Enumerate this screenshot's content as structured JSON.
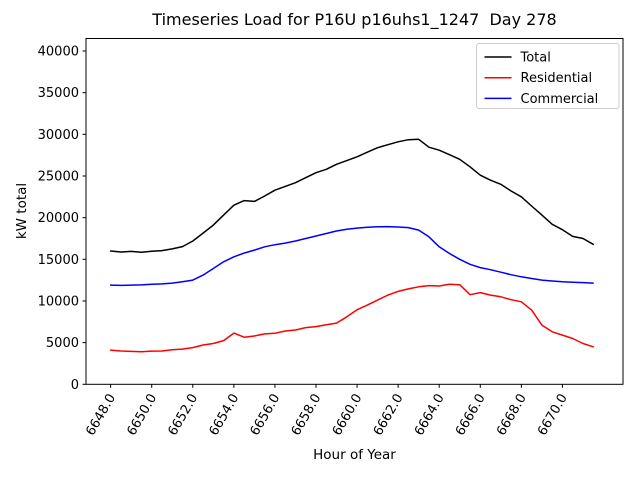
{
  "figure": {
    "background": "#ffffff",
    "text_color": "#000000"
  },
  "chart_data": {
    "type": "line",
    "title": "Timeseries Load for P16U p16uhs1_1247  Day 278",
    "xlabel": "Hour of Year",
    "ylabel": "kW total",
    "xlim": [
      6646.8,
      6672.95
    ],
    "ylim": [
      0,
      41500
    ],
    "grid": false,
    "x": [
      6648,
      6648.5,
      6649,
      6649.5,
      6650,
      6650.5,
      6651,
      6651.5,
      6652,
      6652.5,
      6653,
      6653.5,
      6654,
      6654.5,
      6655,
      6655.5,
      6656,
      6656.5,
      6657,
      6657.5,
      6658,
      6658.5,
      6659,
      6659.5,
      6660,
      6660.5,
      6661,
      6661.5,
      6662,
      6662.5,
      6663,
      6663.5,
      6664,
      6664.5,
      6665,
      6665.5,
      6666,
      6666.5,
      6667,
      6667.5,
      6668,
      6668.5,
      6669,
      6669.5,
      6670,
      6670.5,
      6671,
      6671.5
    ],
    "series": [
      {
        "name": "Total",
        "color": "#000000",
        "values": [
          16000,
          15880,
          15950,
          15850,
          15960,
          16050,
          16250,
          16520,
          17200,
          18150,
          19100,
          20300,
          21500,
          22050,
          21950,
          22600,
          23300,
          23750,
          24200,
          24800,
          25400,
          25800,
          26400,
          26850,
          27300,
          27850,
          28400,
          28750,
          29100,
          29350,
          29400,
          28450,
          28100,
          27550,
          27000,
          26100,
          25100,
          24500,
          24000,
          23200,
          22500,
          21400,
          20300,
          19200,
          18550,
          17750,
          17500,
          16800
        ]
      },
      {
        "name": "Residential",
        "color": "#ff0000",
        "values": [
          4100,
          4000,
          3950,
          3900,
          3980,
          4000,
          4150,
          4230,
          4400,
          4720,
          4900,
          5250,
          6150,
          5650,
          5800,
          6050,
          6120,
          6400,
          6520,
          6800,
          6920,
          7150,
          7350,
          8100,
          8950,
          9500,
          10100,
          10700,
          11150,
          11450,
          11700,
          11850,
          11800,
          12000,
          11950,
          10750,
          11000,
          10700,
          10500,
          10150,
          9900,
          8900,
          7100,
          6300,
          5900,
          5500,
          4900,
          4500
        ]
      },
      {
        "name": "Commercial",
        "color": "#0000ff",
        "values": [
          11900,
          11870,
          11900,
          11930,
          12000,
          12050,
          12150,
          12300,
          12500,
          13100,
          13900,
          14700,
          15300,
          15750,
          16100,
          16500,
          16750,
          16950,
          17200,
          17500,
          17800,
          18100,
          18400,
          18600,
          18750,
          18850,
          18900,
          18920,
          18880,
          18800,
          18500,
          17700,
          16500,
          15700,
          15000,
          14400,
          14000,
          13750,
          13450,
          13150,
          12900,
          12700,
          12500,
          12400,
          12300,
          12250,
          12200,
          12150
        ]
      }
    ],
    "xticks": {
      "values": [
        6648,
        6650,
        6652,
        6654,
        6656,
        6658,
        6660,
        6662,
        6664,
        6666,
        6668,
        6670
      ],
      "labels": [
        "6648.0",
        "6650.0",
        "6652.0",
        "6654.0",
        "6656.0",
        "6658.0",
        "6660.0",
        "6662.0",
        "6664.0",
        "6666.0",
        "6668.0",
        "6670.0"
      ],
      "rotation_deg": 60
    },
    "yticks": {
      "values": [
        0,
        5000,
        10000,
        15000,
        20000,
        25000,
        30000,
        35000,
        40000
      ],
      "labels": [
        "0",
        "5000",
        "10000",
        "15000",
        "20000",
        "25000",
        "30000",
        "35000",
        "40000"
      ]
    },
    "legend": {
      "position": "upper-right",
      "border_color": "#cccccc",
      "entries": [
        {
          "label": "Total",
          "color": "#000000"
        },
        {
          "label": "Residential",
          "color": "#ff0000"
        },
        {
          "label": "Commercial",
          "color": "#0000ff"
        }
      ]
    }
  }
}
